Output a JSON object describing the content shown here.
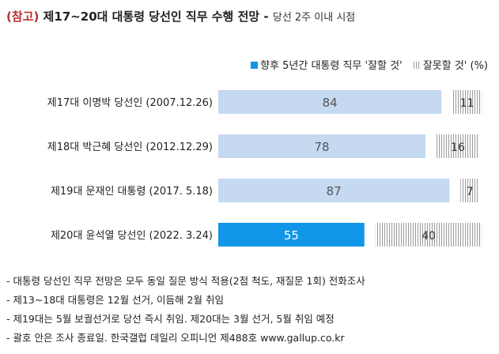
{
  "title": {
    "ref": "(참고)",
    "main": "제17~20대 대통령 당선인 직무 수행 전망 -",
    "sub": "당선 2주 이내 시점"
  },
  "chart_data": {
    "type": "bar",
    "stacked": true,
    "orientation": "horizontal",
    "categories": [
      "제17대 이명박 당선인 (2007.12.26)",
      "제18대 박근혜 당선인 (2012.12.29)",
      "제19대 문재인 대통령 (2017. 5.18)",
      "제20대 윤석열 당선인 (2022. 3.24)"
    ],
    "series": [
      {
        "name": "향후 5년간 대통령 직무 '잘할 것'",
        "values": [
          84,
          78,
          87,
          55
        ]
      },
      {
        "name": "잘못할 것' (%)",
        "values": [
          11,
          16,
          7,
          40
        ]
      }
    ],
    "xlim": [
      0,
      100
    ],
    "highlight_index": 3,
    "colors": {
      "good": "#c5d9f1",
      "good_highlight": "#1196e8",
      "good_label": "#555555",
      "good_label_highlight": "#ffffff",
      "bad_hatch": "#9a9a9a",
      "bad_label": "#333333"
    }
  },
  "notes": [
    "- 대통령 당선인 직무 전망은 모두 동일 질문 방식 적용(2점 척도, 재질문 1회) 전화조사",
    "- 제13~18대 대통령은 12월 선거, 이듬해 2월 취임",
    "- 제19대는 5월 보궐선거로 당선 즉시 취임. 제20대는 3월 선거, 5월 취임 예정",
    "- 괄호 안은 조사 종료일. 한국갤럽 데일리 오피니언 제488호 www.gallup.co.kr"
  ]
}
